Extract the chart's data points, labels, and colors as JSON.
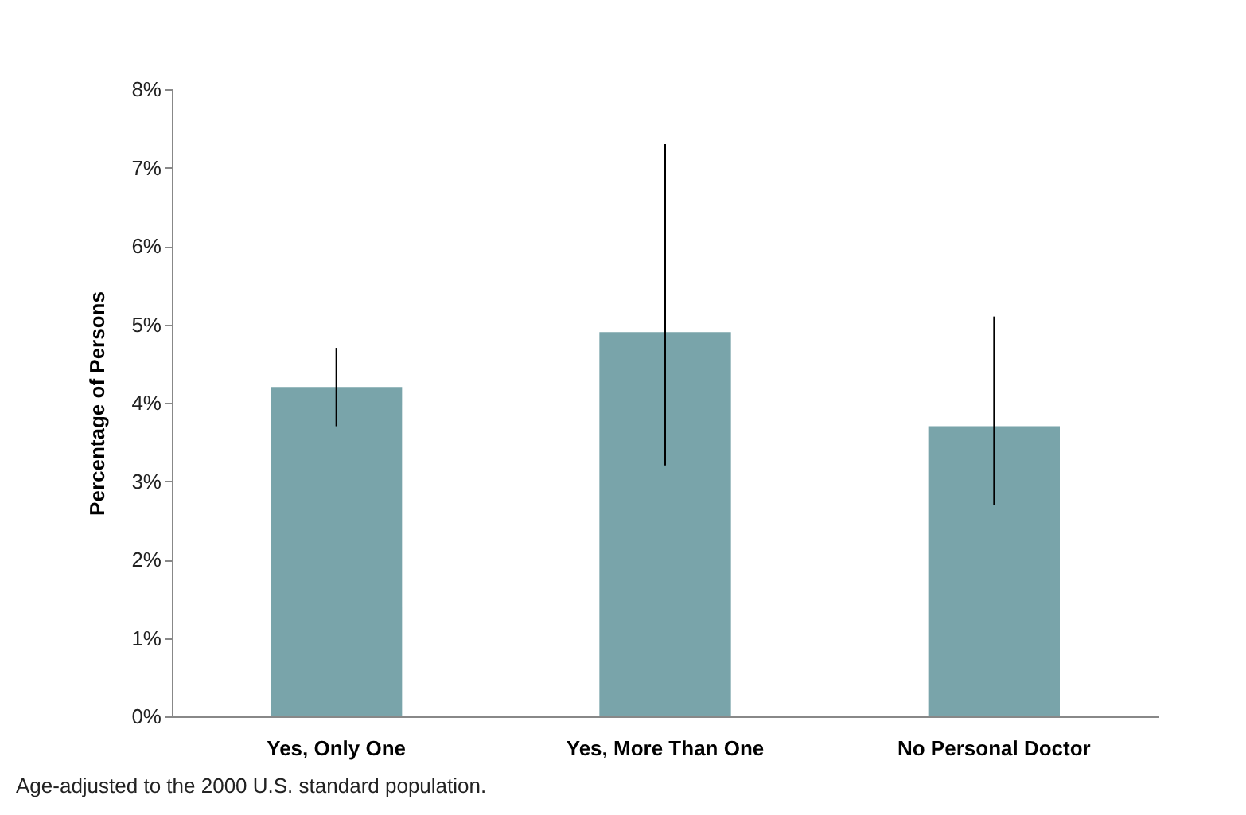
{
  "chart_data": {
    "type": "bar",
    "ylabel": "Percentage of Persons",
    "categories": [
      "Yes, Only One",
      "Yes, More Than One",
      "No Personal Doctor"
    ],
    "values": [
      4.2,
      4.9,
      3.7
    ],
    "color": "#79a4aa",
    "errors": [
      [
        3.7,
        4.7
      ],
      [
        3.2,
        7.3
      ],
      [
        2.7,
        5.1
      ]
    ],
    "ylim": [
      0,
      8
    ],
    "yticks": [
      {
        "value": 0,
        "label": "0%"
      },
      {
        "value": 1,
        "label": "1%"
      },
      {
        "value": 2,
        "label": "2%"
      },
      {
        "value": 3,
        "label": "3%"
      },
      {
        "value": 4,
        "label": "4%"
      },
      {
        "value": 5,
        "label": "5%"
      },
      {
        "value": 6,
        "label": "6%"
      },
      {
        "value": 7,
        "label": "7%"
      },
      {
        "value": 8,
        "label": "8%"
      }
    ],
    "grid": false,
    "annotations": [
      "Age-adjusted to the 2000 U.S. standard population."
    ]
  }
}
